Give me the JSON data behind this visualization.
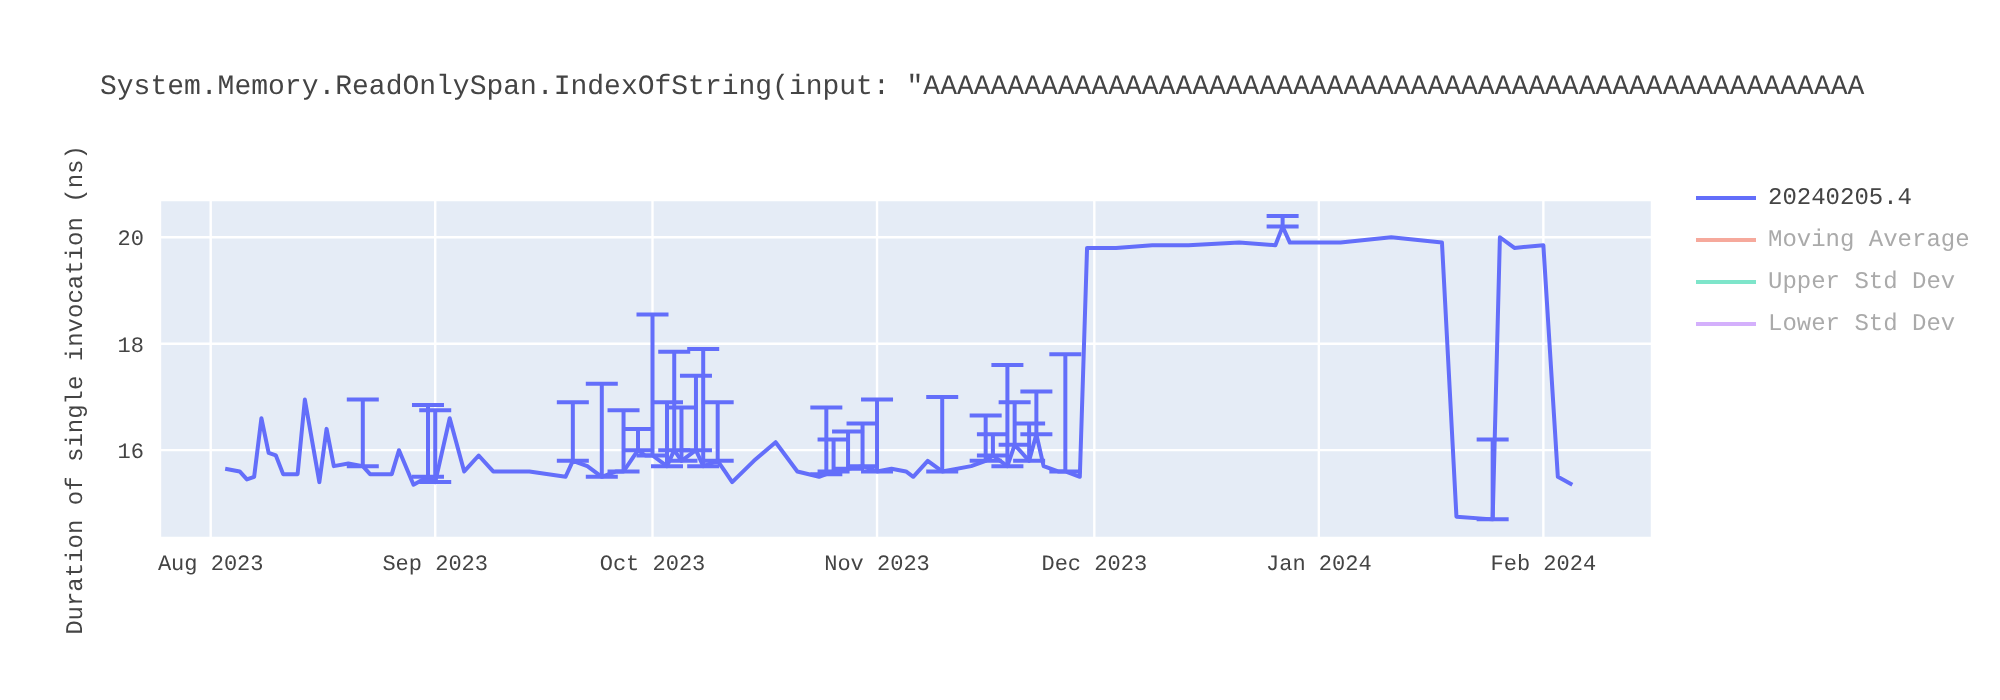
{
  "chart_data": {
    "type": "line",
    "title": "System.Memory.ReadOnlySpan.IndexOfString(input: \"AAAAAAAAAAAAAAAAAAAAAAAAAAAAAAAAAAAAAAAAAAAAAAAAAAAAAAAA",
    "ylabel": "Duration of single invocation (ns)",
    "x": [
      "2023-08-03",
      "2023-08-05",
      "2023-08-06",
      "2023-08-07",
      "2023-08-08",
      "2023-08-09",
      "2023-08-10",
      "2023-08-11",
      "2023-08-13",
      "2023-08-14",
      "2023-08-16",
      "2023-08-17",
      "2023-08-18",
      "2023-08-20",
      "2023-08-22",
      "2023-08-23",
      "2023-08-26",
      "2023-08-27",
      "2023-08-29",
      "2023-08-31",
      "2023-09-01",
      "2023-09-03",
      "2023-09-05",
      "2023-09-07",
      "2023-09-09",
      "2023-09-14",
      "2023-09-19",
      "2023-09-20",
      "2023-09-22",
      "2023-09-24",
      "2023-09-26",
      "2023-09-27",
      "2023-09-29",
      "2023-09-30",
      "2023-10-01",
      "2023-10-03",
      "2023-10-04",
      "2023-10-05",
      "2023-10-07",
      "2023-10-08",
      "2023-10-10",
      "2023-10-11",
      "2023-10-12",
      "2023-10-15",
      "2023-10-18",
      "2023-10-21",
      "2023-10-24",
      "2023-10-25",
      "2023-10-26",
      "2023-10-28",
      "2023-10-30",
      "2023-11-01",
      "2023-11-03",
      "2023-11-05",
      "2023-11-06",
      "2023-11-08",
      "2023-11-10",
      "2023-11-14",
      "2023-11-16",
      "2023-11-17",
      "2023-11-19",
      "2023-11-20",
      "2023-11-22",
      "2023-11-23",
      "2023-11-24",
      "2023-11-26",
      "2023-11-27",
      "2023-11-29",
      "2023-11-30",
      "2023-12-04",
      "2023-12-09",
      "2023-12-14",
      "2023-12-21",
      "2023-12-26",
      "2023-12-27",
      "2023-12-28",
      "2024-01-04",
      "2024-01-11",
      "2024-01-18",
      "2024-01-20",
      "2024-01-25",
      "2024-01-26",
      "2024-01-28",
      "2024-02-01",
      "2024-02-03",
      "2024-02-05"
    ],
    "series": [
      {
        "name": "20240205.4",
        "color": "#636efa",
        "values": [
          15.65,
          15.6,
          15.45,
          15.5,
          16.6,
          15.95,
          15.9,
          15.55,
          15.55,
          16.95,
          15.4,
          16.4,
          15.7,
          15.75,
          15.7,
          15.55,
          15.55,
          16.0,
          15.35,
          15.5,
          15.4,
          16.6,
          15.6,
          15.9,
          15.6,
          15.6,
          15.5,
          15.8,
          15.7,
          15.5,
          15.6,
          15.6,
          16.0,
          15.9,
          15.9,
          15.7,
          16.0,
          15.8,
          16.0,
          15.7,
          15.8,
          15.6,
          15.4,
          15.8,
          16.15,
          15.6,
          15.5,
          15.55,
          15.6,
          15.65,
          15.7,
          15.6,
          15.65,
          15.6,
          15.5,
          15.8,
          15.6,
          15.7,
          15.8,
          15.9,
          15.7,
          16.1,
          15.8,
          16.3,
          15.7,
          15.6,
          15.6,
          15.5,
          19.8,
          19.8,
          19.85,
          19.85,
          19.9,
          19.85,
          20.2,
          19.9,
          19.9,
          20.0,
          19.9,
          14.75,
          14.7,
          20.0,
          19.8,
          19.85,
          15.5,
          15.35
        ],
        "errors": [
          null,
          null,
          null,
          null,
          null,
          null,
          null,
          null,
          null,
          null,
          null,
          null,
          null,
          null,
          [
            15.7,
            16.95
          ],
          null,
          null,
          null,
          null,
          [
            15.5,
            16.85
          ],
          [
            15.4,
            16.75
          ],
          null,
          null,
          null,
          null,
          null,
          null,
          [
            15.8,
            16.9
          ],
          null,
          [
            15.5,
            17.25
          ],
          null,
          [
            15.6,
            16.75
          ],
          [
            16.0,
            16.4
          ],
          null,
          [
            15.9,
            18.55
          ],
          [
            15.7,
            16.9
          ],
          [
            16.0,
            17.85
          ],
          [
            15.8,
            16.8
          ],
          [
            16.0,
            17.4
          ],
          [
            15.7,
            17.9
          ],
          [
            15.8,
            16.9
          ],
          null,
          null,
          null,
          null,
          null,
          null,
          [
            15.55,
            16.8
          ],
          [
            15.6,
            16.2
          ],
          [
            15.65,
            16.35
          ],
          [
            15.7,
            16.5
          ],
          [
            15.6,
            16.95
          ],
          null,
          null,
          null,
          null,
          [
            15.6,
            17.0
          ],
          null,
          [
            15.8,
            16.65
          ],
          [
            15.9,
            16.3
          ],
          [
            15.7,
            17.6
          ],
          [
            16.1,
            16.9
          ],
          [
            15.8,
            16.5
          ],
          [
            16.3,
            17.1
          ],
          null,
          null,
          [
            15.6,
            17.8
          ],
          null,
          null,
          null,
          null,
          null,
          null,
          null,
          [
            20.2,
            20.4
          ],
          null,
          null,
          null,
          null,
          null,
          [
            14.7,
            16.2
          ],
          null,
          null,
          null,
          null,
          null
        ]
      },
      {
        "name": "Moving Average",
        "color": "#ef553b",
        "values": [
          null,
          null,
          null,
          null,
          null,
          null,
          null,
          null,
          null,
          null,
          null,
          null,
          null,
          null,
          null,
          null,
          null,
          null,
          null,
          null,
          null,
          null,
          null,
          null,
          null,
          null,
          null,
          null,
          null,
          null,
          null,
          null,
          null,
          null,
          null,
          null,
          null,
          null,
          null,
          null,
          null,
          null,
          null,
          null,
          null,
          null,
          null,
          null,
          null,
          null,
          null,
          null,
          null,
          null,
          null,
          null,
          null,
          null,
          null,
          null,
          null,
          null,
          null,
          null,
          null,
          null,
          null,
          null,
          null,
          null,
          null,
          null,
          null,
          null,
          null,
          null,
          null,
          null,
          null,
          null,
          null,
          null,
          null,
          null,
          null,
          null
        ]
      },
      {
        "name": "Upper Std Dev",
        "color": "#00cc96",
        "values": [
          null,
          null,
          null,
          null,
          null,
          null,
          null,
          null,
          null,
          null,
          null,
          null,
          null,
          null,
          null,
          null,
          null,
          null,
          null,
          null,
          null,
          null,
          null,
          null,
          null,
          null,
          null,
          null,
          null,
          null,
          null,
          null,
          null,
          null,
          null,
          null,
          null,
          null,
          null,
          null,
          null,
          null,
          null,
          null,
          null,
          null,
          null,
          null,
          null,
          null,
          null,
          null,
          null,
          null,
          null,
          null,
          null,
          null,
          null,
          null,
          null,
          null,
          null,
          null,
          null,
          null,
          null,
          null,
          null,
          null,
          null,
          null,
          null,
          null,
          null,
          null,
          null,
          null,
          null,
          null,
          null,
          null,
          null,
          null,
          null,
          null
        ]
      },
      {
        "name": "Lower Std Dev",
        "color": "#ab63fa",
        "values": [
          null,
          null,
          null,
          null,
          null,
          null,
          null,
          null,
          null,
          null,
          null,
          null,
          null,
          null,
          null,
          null,
          null,
          null,
          null,
          null,
          null,
          null,
          null,
          null,
          null,
          null,
          null,
          null,
          null,
          null,
          null,
          null,
          null,
          null,
          null,
          null,
          null,
          null,
          null,
          null,
          null,
          null,
          null,
          null,
          null,
          null,
          null,
          null,
          null,
          null,
          null,
          null,
          null,
          null,
          null,
          null,
          null,
          null,
          null,
          null,
          null,
          null,
          null,
          null,
          null,
          null,
          null,
          null,
          null,
          null,
          null,
          null,
          null,
          null,
          null,
          null,
          null,
          null,
          null,
          null,
          null,
          null,
          null,
          null,
          null,
          null
        ]
      }
    ],
    "xlim": [
      "2023-07-25",
      "2024-02-16"
    ],
    "xticks": [
      {
        "value": "2023-08-01",
        "label": "Aug 2023"
      },
      {
        "value": "2023-09-01",
        "label": "Sep 2023"
      },
      {
        "value": "2023-10-01",
        "label": "Oct 2023"
      },
      {
        "value": "2023-11-01",
        "label": "Nov 2023"
      },
      {
        "value": "2023-12-01",
        "label": "Dec 2023"
      },
      {
        "value": "2024-01-01",
        "label": "Jan 2024"
      },
      {
        "value": "2024-02-01",
        "label": "Feb 2024"
      }
    ],
    "ylim": [
      14.35,
      20.7
    ],
    "yticks": [
      16,
      18,
      20
    ],
    "grid": true,
    "legend": "top right",
    "marker": "none",
    "line_style": "solid"
  }
}
